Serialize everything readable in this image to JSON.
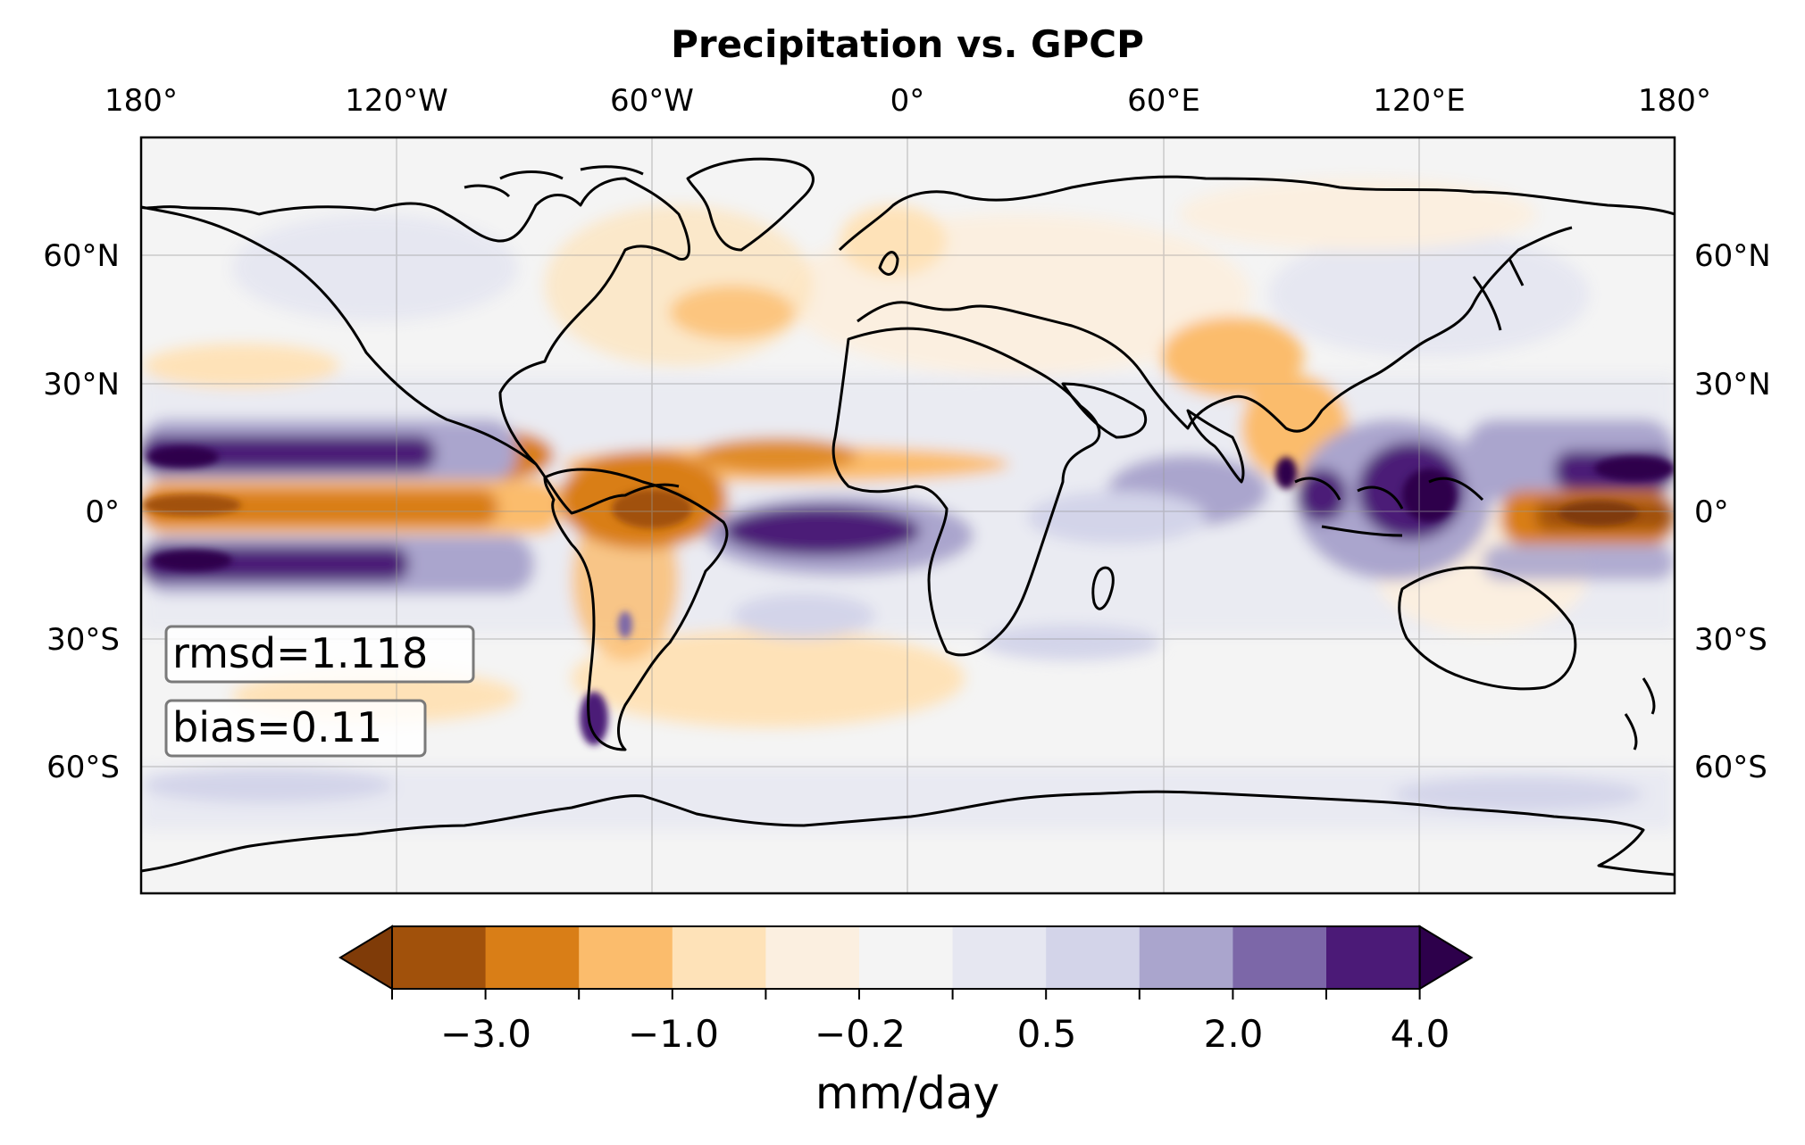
{
  "title": "Precipitation vs. GPCP",
  "lon_ticks": [
    "180°",
    "120°W",
    "60°W",
    "0°",
    "60°E",
    "120°E",
    "180°"
  ],
  "lat_ticks": [
    "60°N",
    "30°N",
    "0°",
    "30°S",
    "60°S"
  ],
  "stats": {
    "rmsd": "rmsd=1.118",
    "bias": "bias=0.11"
  },
  "colorbar": {
    "label": "mm/day",
    "tick_labels": [
      "−3.0",
      "−1.0",
      "−0.2",
      "0.5",
      "2.0",
      "4.0"
    ],
    "levels": [
      -4.0,
      -3.0,
      -2.0,
      -1.0,
      -0.5,
      -0.2,
      0.2,
      0.5,
      1.0,
      2.0,
      3.0,
      4.0
    ],
    "colors": [
      "#7f3b08",
      "#a1510b",
      "#d97e17",
      "#fbbc6c",
      "#fee2b8",
      "#fbefe0",
      "#f4f4f4",
      "#e6e7f1",
      "#d3d4e9",
      "#aaa5cd",
      "#7c67a8",
      "#4b1a77",
      "#2d004b"
    ],
    "extend": "both"
  },
  "chart_data": {
    "type": "heatmap",
    "title": "Precipitation vs. GPCP",
    "projection": "equirectangular",
    "lon_range": [
      -180,
      180
    ],
    "lat_range": [
      -90,
      90
    ],
    "xticks": [
      -180,
      -120,
      -60,
      0,
      60,
      120,
      180
    ],
    "yticks": [
      60,
      30,
      0,
      -30,
      -60
    ],
    "colorbar_label": "mm/day",
    "grid": true,
    "stats": {
      "rmsd": 1.118,
      "bias": 0.11
    }
  }
}
